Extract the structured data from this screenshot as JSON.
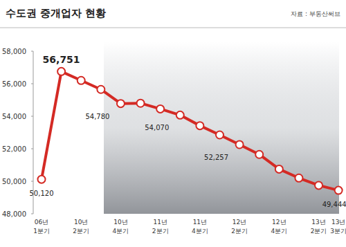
{
  "chart_data": {
    "type": "line",
    "title": "수도권 중개업자 현황",
    "subtitle": "자료 : 부동산써브",
    "categories": [
      "06년 1분기",
      null,
      "10년 2분기",
      null,
      "10년 4분기",
      null,
      "11년 2분기",
      null,
      "11년 4분기",
      null,
      "12년 2분기",
      null,
      "12년 4분기",
      null,
      "13년 2분기",
      "13년 3분기"
    ],
    "values": [
      50120,
      56751,
      56200,
      55650,
      54780,
      54800,
      54450,
      54070,
      53420,
      52850,
      52257,
      51650,
      50750,
      50200,
      49750,
      49444
    ],
    "value_labels": [
      "50,120",
      "56,751",
      null,
      null,
      "54,780",
      null,
      null,
      "54,070",
      null,
      null,
      "52,257",
      null,
      null,
      null,
      null,
      "49,444"
    ],
    "data_labels": true,
    "color": "#d42a24",
    "marker": "circle",
    "ylim": [
      48000,
      58000
    ],
    "yticks": [
      {
        "value": 48000,
        "label": "48,000"
      },
      {
        "value": 50000,
        "label": "50,000"
      },
      {
        "value": 52000,
        "label": "52,000"
      },
      {
        "value": 54000,
        "label": "54,000"
      },
      {
        "value": 56000,
        "label": "56,000"
      },
      {
        "value": 58000,
        "label": "58,000"
      }
    ],
    "grid": false
  }
}
